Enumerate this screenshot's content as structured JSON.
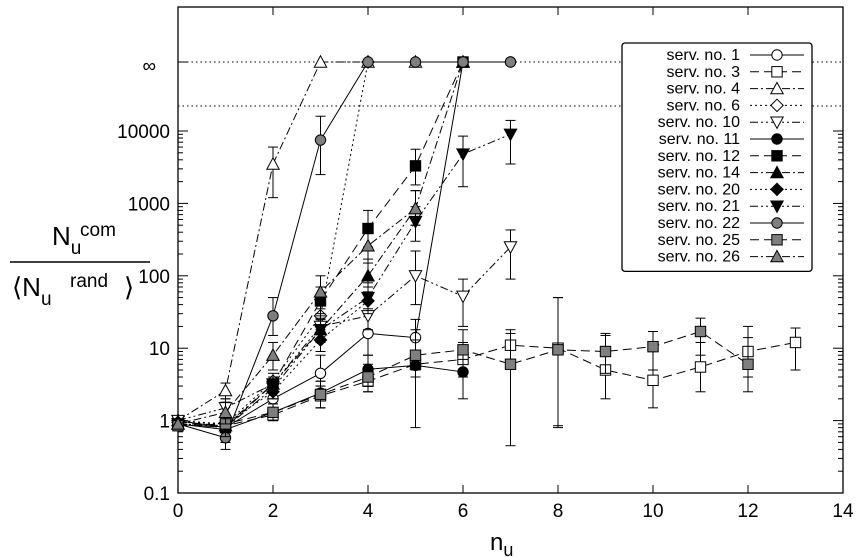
{
  "chart_data": {
    "type": "scatter",
    "title": "",
    "xlabel": {
      "main": "n",
      "sub": "u"
    },
    "ylabel": {
      "num_main": "N",
      "num_sup": "com",
      "num_sub": "u",
      "den_open": "⟨",
      "den_main": "N",
      "den_sup": "rand",
      "den_sub": "u",
      "den_close": "⟩"
    },
    "x_scale": "linear",
    "y_scale": "log",
    "xlim": [
      0,
      14
    ],
    "ylim": [
      0.1,
      10000
    ],
    "x_ticks": [
      "0",
      "2",
      "4",
      "6",
      "8",
      "10",
      "12",
      "14"
    ],
    "y_ticks": [
      "0.1",
      "1",
      "10",
      "100",
      "1000",
      "10000"
    ],
    "y_extra_ticks": [
      {
        "label": "∞",
        "meaning": "infinite ratio band"
      }
    ],
    "grid": false,
    "legend_position": "top-right",
    "series": [
      {
        "name": "serv. no. 1",
        "marker": "circle",
        "fill": "white",
        "line": "solid",
        "x": [
          0,
          1,
          2,
          3,
          4,
          5,
          6,
          7
        ],
        "y": [
          1,
          0.8,
          2.0,
          4.5,
          16,
          14,
          "inf",
          "inf"
        ],
        "err_low": [
          0.9,
          0.5,
          1.5,
          3,
          8,
          7,
          null,
          null
        ],
        "err_high": [
          1.1,
          1.2,
          3,
          8,
          30,
          25,
          null,
          null
        ]
      },
      {
        "name": "serv. no. 3",
        "marker": "square",
        "fill": "white",
        "line": "dash",
        "x": [
          0,
          1,
          2,
          3,
          4,
          5,
          6,
          7,
          8,
          9,
          10,
          11,
          12,
          13
        ],
        "y": [
          0.95,
          0.85,
          1.2,
          2.2,
          3.5,
          6,
          7,
          11,
          10,
          5,
          3.6,
          5.5,
          9,
          12
        ],
        "err_low": [
          0.85,
          0.6,
          1,
          1.5,
          2.5,
          4,
          4,
          6,
          0.8,
          2,
          1.5,
          2.5,
          4,
          5
        ],
        "err_high": [
          1.05,
          1.1,
          1.5,
          3,
          5,
          9,
          12,
          18,
          50,
          15,
          10,
          12,
          20,
          19
        ]
      },
      {
        "name": "serv. no. 4",
        "marker": "triangle-up",
        "fill": "white",
        "line": "dashdot",
        "x": [
          0,
          1,
          2,
          3,
          4,
          5,
          6
        ],
        "y": [
          1,
          2.6,
          3500,
          "inf",
          "inf",
          "inf",
          "inf"
        ],
        "err_low": [
          0.9,
          2.0,
          1200,
          null,
          null,
          null,
          null
        ],
        "err_high": [
          1.1,
          3.3,
          6000,
          null,
          null,
          null,
          null
        ]
      },
      {
        "name": "serv. no. 6",
        "marker": "diamond",
        "fill": "white",
        "line": "dot",
        "x": [
          0,
          1,
          2,
          3,
          4
        ],
        "y": [
          1,
          0.9,
          3.5,
          28,
          "inf"
        ],
        "err_low": [
          0.9,
          0.6,
          2.5,
          18,
          null
        ],
        "err_high": [
          1.1,
          1.2,
          4.5,
          40,
          null
        ]
      },
      {
        "name": "serv. no. 10",
        "marker": "triangle-down",
        "fill": "white",
        "line": "dashdotdot",
        "x": [
          0,
          1,
          2,
          3,
          4,
          5,
          6,
          7
        ],
        "y": [
          1,
          1.5,
          3.2,
          20,
          28,
          100,
          52,
          250
        ],
        "err_low": [
          0.9,
          1.1,
          2.5,
          12,
          18,
          40,
          20,
          90
        ],
        "err_high": [
          1.1,
          2.0,
          4,
          30,
          45,
          220,
          90,
          430
        ]
      },
      {
        "name": "serv. no. 11",
        "marker": "circle",
        "fill": "black",
        "line": "solid",
        "x": [
          0,
          1,
          2,
          3,
          4,
          5,
          6
        ],
        "y": [
          0.9,
          0.75,
          1.3,
          2.4,
          5.1,
          5.8,
          4.7
        ],
        "err_low": [
          0.8,
          0.5,
          1,
          1.5,
          3,
          0.8,
          2
        ],
        "err_high": [
          1,
          1,
          1.7,
          3.5,
          8,
          18,
          7
        ]
      },
      {
        "name": "serv. no. 12",
        "marker": "square",
        "fill": "black",
        "line": "dash",
        "x": [
          0,
          1,
          2,
          3,
          4,
          5,
          6
        ],
        "y": [
          0.9,
          0.8,
          3.2,
          45,
          450,
          3300,
          "inf"
        ],
        "err_low": [
          0.8,
          0.6,
          2.5,
          25,
          250,
          1800,
          null
        ],
        "err_high": [
          1,
          1,
          4,
          70,
          800,
          5600,
          null
        ]
      },
      {
        "name": "serv. no. 14",
        "marker": "triangle-up",
        "fill": "black",
        "line": "dashdot",
        "x": [
          0,
          1,
          2,
          3,
          4,
          5,
          6
        ],
        "y": [
          0.9,
          0.85,
          3.2,
          18,
          100,
          850,
          "inf"
        ],
        "err_low": [
          0.8,
          0.6,
          2.5,
          12,
          60,
          500,
          null
        ],
        "err_high": [
          1,
          1.1,
          4,
          28,
          170,
          1500,
          null
        ]
      },
      {
        "name": "serv. no. 20",
        "marker": "diamond",
        "fill": "black",
        "line": "dot",
        "x": [
          0,
          1,
          2,
          3,
          4
        ],
        "y": [
          0.95,
          0.9,
          2.5,
          13,
          45
        ],
        "err_low": [
          0.85,
          0.6,
          2,
          9,
          30
        ],
        "err_high": [
          1.05,
          1.2,
          3.2,
          20,
          70
        ]
      },
      {
        "name": "serv. no. 21",
        "marker": "triangle-down",
        "fill": "black",
        "line": "dashdotdot",
        "x": [
          0,
          1,
          2,
          3,
          4,
          5,
          6,
          7
        ],
        "y": [
          0.9,
          0.8,
          2.8,
          18,
          50,
          560,
          4800,
          9000
        ],
        "err_low": [
          0.8,
          0.6,
          2,
          12,
          35,
          300,
          1700,
          3500
        ],
        "err_high": [
          1,
          1,
          3.6,
          26,
          80,
          900,
          8500,
          14000
        ]
      },
      {
        "name": "serv. no. 22",
        "marker": "circle",
        "fill": "gray",
        "line": "solid",
        "x": [
          0,
          1,
          2,
          3,
          4,
          5,
          6,
          7
        ],
        "y": [
          0.9,
          0.58,
          28,
          7500,
          "inf",
          "inf",
          "inf",
          "inf"
        ],
        "err_low": [
          0.8,
          0.4,
          15,
          2500,
          null,
          null,
          null,
          null
        ],
        "err_high": [
          1,
          0.8,
          50,
          16000,
          null,
          null,
          null,
          null
        ]
      },
      {
        "name": "serv. no. 25",
        "marker": "square",
        "fill": "gray",
        "line": "dash",
        "x": [
          0,
          1,
          2,
          3,
          4,
          5,
          6,
          7,
          8,
          9,
          10,
          11,
          12
        ],
        "y": [
          0.85,
          0.9,
          1.3,
          2.3,
          4,
          8,
          9.5,
          6,
          9.5,
          9,
          10.5,
          17,
          6
        ],
        "err_low": [
          0.75,
          0.6,
          1,
          1.5,
          2.5,
          5,
          5,
          0.45,
          0.85,
          4.5,
          5,
          8,
          2.5
        ],
        "err_high": [
          0.95,
          1.2,
          1.7,
          3.5,
          6,
          13,
          18,
          16,
          50,
          16,
          17,
          26,
          14
        ]
      },
      {
        "name": "serv. no. 26",
        "marker": "triangle-up",
        "fill": "gray",
        "line": "dashdot",
        "x": [
          0,
          1,
          2,
          3,
          4,
          5
        ],
        "y": [
          0.9,
          1.3,
          8,
          60,
          260,
          850
        ],
        "err_low": [
          0.8,
          0.9,
          5,
          35,
          150,
          500
        ],
        "err_high": [
          1,
          1.8,
          12,
          100,
          450,
          1500
        ]
      }
    ]
  }
}
